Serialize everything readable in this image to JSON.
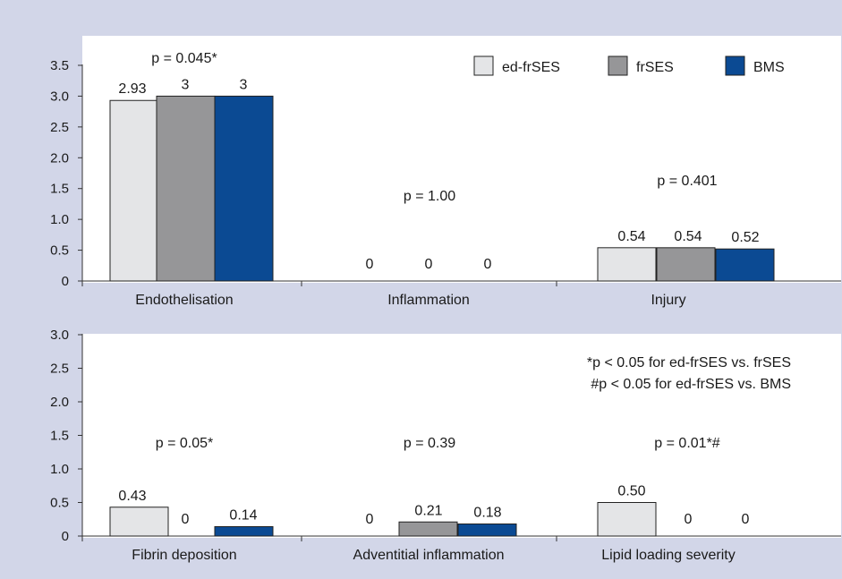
{
  "colors": {
    "background": "#d2d6e8",
    "plot_area": "#ffffff",
    "axis": "#333333",
    "ed_frSES": "#e4e5e7",
    "frSES": "#969698",
    "BMS": "#0b4a93"
  },
  "chart_data": [
    {
      "type": "bar",
      "categories": [
        "Endothelisation",
        "Inflammation",
        "Injury"
      ],
      "series": [
        {
          "name": "ed-frSES",
          "values": [
            2.93,
            0,
            0.54
          ],
          "labels": [
            "2.93",
            "0",
            "0.54"
          ]
        },
        {
          "name": "frSES",
          "values": [
            3,
            0,
            0.54
          ],
          "labels": [
            "3",
            "0",
            "0.54"
          ]
        },
        {
          "name": "BMS",
          "values": [
            3,
            0,
            0.52
          ],
          "labels": [
            "3",
            "0",
            "0.52"
          ]
        }
      ],
      "ylim": [
        0,
        3.5
      ],
      "yticks": [
        "0",
        "0.5",
        "1.0",
        "1.5",
        "2.0",
        "2.5",
        "3.0",
        "3.5"
      ],
      "p_values": [
        "p = 0.045*",
        "p = 1.00",
        "p = 0.401"
      ],
      "legend": {
        "placement": "top-right",
        "entries": [
          "ed-frSES",
          "frSES",
          "BMS"
        ]
      },
      "grid": false
    },
    {
      "type": "bar",
      "categories": [
        "Fibrin deposition",
        "Adventitial inflammation",
        "Lipid loading severity"
      ],
      "series": [
        {
          "name": "ed-frSES",
          "values": [
            0.43,
            0,
            0.5
          ],
          "labels": [
            "0.43",
            "0",
            "0.50"
          ]
        },
        {
          "name": "frSES",
          "values": [
            0,
            0.21,
            0
          ],
          "labels": [
            "0",
            "0.21",
            "0"
          ]
        },
        {
          "name": "BMS",
          "values": [
            0.14,
            0.18,
            0
          ],
          "labels": [
            "0.14",
            "0.18",
            "0"
          ]
        }
      ],
      "ylim": [
        0,
        3.0
      ],
      "yticks": [
        "0",
        "0.5",
        "1.0",
        "1.5",
        "2.0",
        "2.5",
        "3.0"
      ],
      "p_values": [
        "p = 0.05*",
        "p = 0.39",
        "p = 0.01*#"
      ],
      "notes": [
        "*p < 0.05 for ed-frSES vs. frSES",
        "#p < 0.05 for ed-frSES vs. BMS"
      ],
      "grid": false
    }
  ]
}
